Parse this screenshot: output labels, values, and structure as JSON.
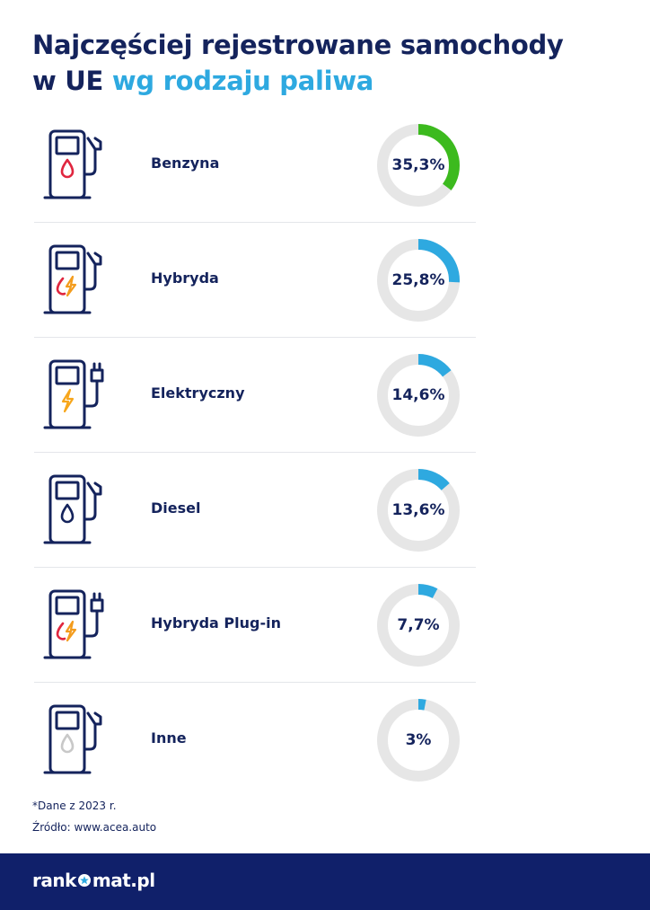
{
  "title_part1": "Najczęściej rejestrowane samochody",
  "title_part2": "w UE",
  "title_accent": "wg rodzaju paliwa",
  "chart_data": {
    "type": "donut",
    "title": "Najczęściej rejestrowane samochody w UE wg rodzaju paliwa",
    "categories": [
      "Benzyna",
      "Hybryda",
      "Elektryczny",
      "Diesel",
      "Hybryda Plug-in",
      "Inne"
    ],
    "values": [
      35.3,
      25.8,
      14.6,
      13.6,
      7.7,
      3
    ],
    "labels": [
      "35,3%",
      "25,8%",
      "14,6%",
      "13,6%",
      "7,7%",
      "3%"
    ],
    "unit": "%"
  },
  "rows": [
    {
      "label": "Benzyna",
      "value_label": "35,3%",
      "icon": "fuel-pump-drop-icon",
      "icon_color": "#e0263f"
    },
    {
      "label": "Hybryda",
      "value_label": "25,8%",
      "icon": "fuel-pump-hybrid-icon",
      "icon_color": "#f39c1d"
    },
    {
      "label": "Elektryczny",
      "value_label": "14,6%",
      "icon": "ev-charger-icon",
      "icon_color": "#f7a61b"
    },
    {
      "label": "Diesel",
      "value_label": "13,6%",
      "icon": "fuel-pump-drop-icon",
      "icon_color": "#14235c"
    },
    {
      "label": "Hybryda Plug-in",
      "value_label": "7,7%",
      "icon": "ev-charger-hybrid-icon",
      "icon_color": "#f39c1d"
    },
    {
      "label": "Inne",
      "value_label": "3%",
      "icon": "fuel-pump-drop-icon",
      "icon_color": "#c8c8c8"
    }
  ],
  "colors": {
    "navy": "#14235c",
    "accent": "#2ea9e0",
    "highlight": "#3cba1e",
    "track": "#e6e6e6",
    "footer_bg": "#10206a"
  },
  "footnote": "*Dane z 2023 r.",
  "source": "Źródło: www.acea.auto",
  "logo": {
    "left": "rank",
    "right": "mat.pl",
    "mark": "star-o-icon"
  }
}
